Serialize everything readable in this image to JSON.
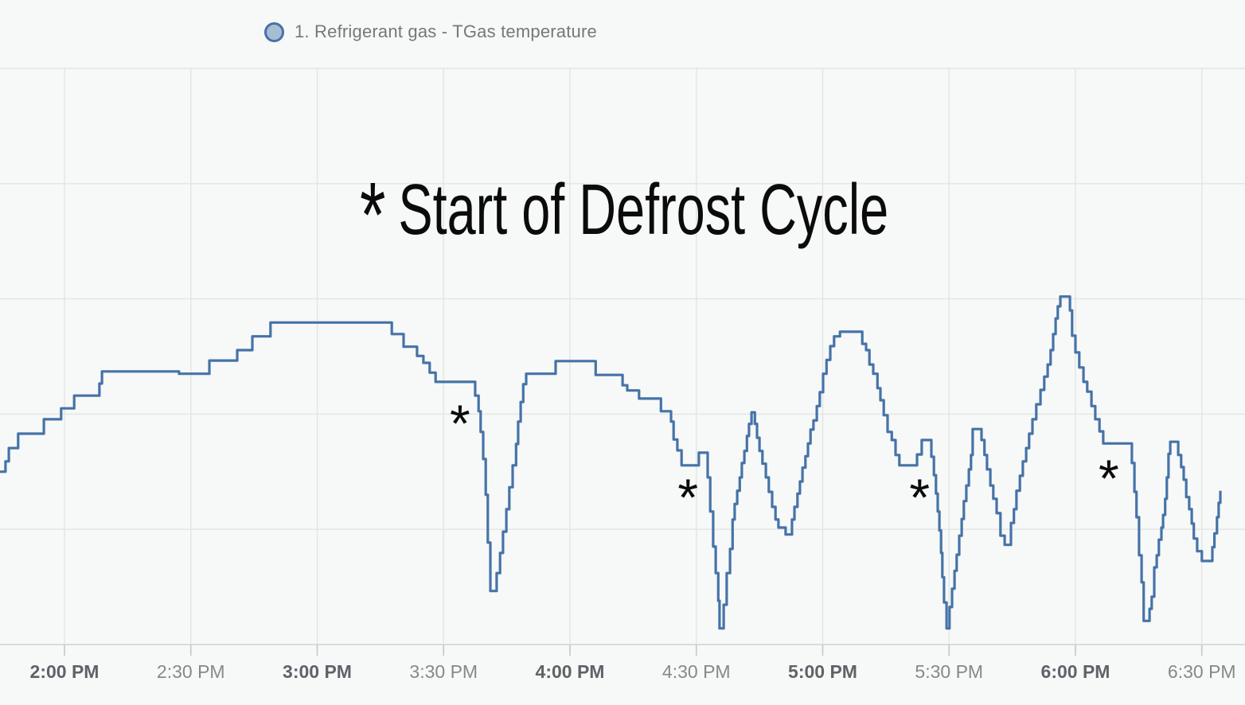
{
  "page": {
    "background": "#f7f8f8"
  },
  "legend": {
    "label": "1. Refrigerant gas - TGas temperature",
    "marker_shape": "circle",
    "marker_fill": "#a9bdd2",
    "marker_stroke": "#4573a7",
    "text_color": "#76777a"
  },
  "annotation": {
    "symbol": "*",
    "text": "Start of Defrost Cycle",
    "full_text": "* Start of Defrost Cycle",
    "color": "#0b0b0b"
  },
  "chart_data": {
    "type": "line",
    "step": true,
    "title": "",
    "xlabel": "",
    "ylabel": "",
    "legend_position": "top-left",
    "grid": true,
    "colors": {
      "series_line": "#4573a7",
      "gridline": "#e3e4e4",
      "axis_baseline": "#d0d1d1",
      "tick_mark": "#c6c7c8",
      "tick_label_bold": "#5f6368",
      "tick_label_regular": "#85898c",
      "marker": "#0b0b0b"
    },
    "x_axis": {
      "unit": "minutes_after_2:00_PM",
      "range": [
        -15.3,
        276.2
      ],
      "ticks": [
        {
          "t": 0,
          "label": "2:00 PM",
          "bold": true
        },
        {
          "t": 30,
          "label": "2:30 PM",
          "bold": false
        },
        {
          "t": 60,
          "label": "3:00 PM",
          "bold": true
        },
        {
          "t": 90,
          "label": "3:30 PM",
          "bold": false
        },
        {
          "t": 120,
          "label": "4:00 PM",
          "bold": true
        },
        {
          "t": 150,
          "label": "4:30 PM",
          "bold": false
        },
        {
          "t": 180,
          "label": "5:00 PM",
          "bold": true
        },
        {
          "t": 210,
          "label": "5:30 PM",
          "bold": false
        },
        {
          "t": 240,
          "label": "6:00 PM",
          "bold": true
        },
        {
          "t": 270,
          "label": "6:30 PM",
          "bold": false
        }
      ]
    },
    "y_axis": {
      "unit": "percent_of_plot_height",
      "range": [
        0,
        100
      ],
      "labels_visible": false,
      "gridline_values": [
        0,
        20,
        40,
        60,
        80,
        100
      ]
    },
    "series": [
      {
        "name": "1. Refrigerant gas - TGas temperature",
        "color": "#4573a7",
        "interpolation": "step-after",
        "points": [
          [
            -15.3,
            30.0
          ],
          [
            -14.0,
            31.8
          ],
          [
            -13.2,
            34.1
          ],
          [
            -11.0,
            36.6
          ],
          [
            -4.9,
            39.1
          ],
          [
            -0.8,
            41.0
          ],
          [
            2.3,
            43.2
          ],
          [
            8.3,
            45.3
          ],
          [
            8.9,
            47.4
          ],
          [
            27.2,
            47.0
          ],
          [
            34.4,
            49.3
          ],
          [
            41.0,
            51.1
          ],
          [
            44.6,
            53.5
          ],
          [
            48.9,
            55.9
          ],
          [
            77.7,
            53.9
          ],
          [
            80.5,
            51.7
          ],
          [
            83.7,
            50.1
          ],
          [
            85.2,
            48.9
          ],
          [
            86.7,
            47.2
          ],
          [
            88.1,
            45.6
          ],
          [
            97.5,
            43.2
          ],
          [
            98.3,
            40.5
          ],
          [
            98.8,
            36.9
          ],
          [
            99.4,
            32.2
          ],
          [
            100.0,
            26.0
          ],
          [
            100.5,
            17.7
          ],
          [
            101.1,
            9.3
          ],
          [
            102.6,
            12.4
          ],
          [
            103.4,
            15.9
          ],
          [
            104.1,
            19.6
          ],
          [
            104.9,
            23.5
          ],
          [
            105.6,
            27.3
          ],
          [
            106.4,
            31.1
          ],
          [
            107.2,
            34.8
          ],
          [
            107.7,
            38.7
          ],
          [
            108.3,
            42.1
          ],
          [
            108.9,
            45.2
          ],
          [
            109.6,
            47.0
          ],
          [
            116.6,
            49.2
          ],
          [
            126.1,
            46.8
          ],
          [
            132.5,
            45.0
          ],
          [
            133.6,
            44.1
          ],
          [
            136.4,
            42.7
          ],
          [
            141.6,
            40.5
          ],
          [
            144.0,
            38.7
          ],
          [
            144.6,
            35.6
          ],
          [
            145.5,
            33.7
          ],
          [
            146.5,
            31.1
          ],
          [
            150.6,
            33.3
          ],
          [
            152.7,
            29.0
          ],
          [
            153.3,
            23.1
          ],
          [
            154.0,
            17.0
          ],
          [
            154.6,
            12.4
          ],
          [
            155.2,
            7.6
          ],
          [
            155.5,
            2.8
          ],
          [
            156.5,
            6.9
          ],
          [
            157.2,
            12.4
          ],
          [
            158.0,
            16.6
          ],
          [
            158.6,
            21.7
          ],
          [
            159.1,
            24.4
          ],
          [
            159.7,
            26.7
          ],
          [
            160.3,
            29.0
          ],
          [
            160.8,
            31.5
          ],
          [
            161.4,
            33.6
          ],
          [
            162.0,
            36.2
          ],
          [
            162.5,
            38.3
          ],
          [
            163.1,
            40.3
          ],
          [
            163.9,
            38.3
          ],
          [
            164.4,
            35.9
          ],
          [
            165.0,
            33.6
          ],
          [
            165.7,
            31.4
          ],
          [
            166.5,
            29.0
          ],
          [
            167.2,
            26.5
          ],
          [
            168.0,
            23.9
          ],
          [
            168.8,
            21.7
          ],
          [
            169.5,
            20.3
          ],
          [
            171.2,
            19.1
          ],
          [
            172.7,
            21.7
          ],
          [
            173.3,
            23.9
          ],
          [
            174.0,
            26.2
          ],
          [
            174.6,
            28.3
          ],
          [
            175.2,
            30.7
          ],
          [
            175.9,
            32.7
          ],
          [
            176.5,
            34.9
          ],
          [
            177.1,
            37.3
          ],
          [
            177.8,
            38.9
          ],
          [
            178.6,
            41.4
          ],
          [
            179.3,
            43.8
          ],
          [
            180.1,
            47.0
          ],
          [
            180.9,
            49.4
          ],
          [
            181.8,
            51.8
          ],
          [
            182.7,
            53.5
          ],
          [
            184.1,
            54.3
          ],
          [
            189.4,
            52.2
          ],
          [
            190.3,
            51.1
          ],
          [
            191.1,
            48.6
          ],
          [
            192.0,
            47.0
          ],
          [
            193.0,
            44.5
          ],
          [
            193.7,
            42.4
          ],
          [
            194.5,
            39.8
          ],
          [
            195.4,
            36.9
          ],
          [
            196.4,
            35.5
          ],
          [
            197.3,
            32.9
          ],
          [
            198.2,
            31.1
          ],
          [
            202.4,
            33.0
          ],
          [
            203.5,
            35.5
          ],
          [
            205.8,
            32.6
          ],
          [
            206.4,
            29.4
          ],
          [
            206.9,
            26.2
          ],
          [
            207.3,
            23.1
          ],
          [
            207.7,
            19.8
          ],
          [
            208.1,
            15.9
          ],
          [
            208.4,
            11.7
          ],
          [
            208.8,
            7.3
          ],
          [
            209.4,
            2.8
          ],
          [
            210.1,
            6.5
          ],
          [
            210.7,
            9.7
          ],
          [
            211.3,
            12.8
          ],
          [
            211.8,
            15.6
          ],
          [
            212.4,
            18.9
          ],
          [
            213.0,
            21.8
          ],
          [
            213.5,
            24.9
          ],
          [
            214.1,
            27.6
          ],
          [
            214.7,
            30.4
          ],
          [
            215.2,
            32.9
          ],
          [
            215.6,
            37.4
          ],
          [
            217.7,
            35.5
          ],
          [
            218.4,
            32.9
          ],
          [
            219.0,
            30.4
          ],
          [
            219.8,
            27.6
          ],
          [
            220.5,
            25.3
          ],
          [
            221.3,
            22.8
          ],
          [
            222.2,
            18.9
          ],
          [
            223.2,
            17.3
          ],
          [
            224.7,
            21.1
          ],
          [
            225.4,
            23.5
          ],
          [
            226.0,
            26.7
          ],
          [
            226.8,
            29.3
          ],
          [
            227.5,
            31.8
          ],
          [
            228.3,
            34.1
          ],
          [
            229.0,
            36.6
          ],
          [
            229.8,
            39.1
          ],
          [
            230.7,
            41.7
          ],
          [
            231.7,
            44.2
          ],
          [
            232.6,
            46.5
          ],
          [
            233.4,
            48.6
          ],
          [
            234.1,
            51.1
          ],
          [
            234.7,
            53.9
          ],
          [
            235.3,
            56.6
          ],
          [
            235.8,
            58.7
          ],
          [
            236.4,
            60.4
          ],
          [
            238.7,
            58.0
          ],
          [
            239.2,
            53.6
          ],
          [
            240.0,
            50.7
          ],
          [
            240.9,
            48.1
          ],
          [
            241.9,
            45.6
          ],
          [
            242.8,
            43.9
          ],
          [
            243.8,
            41.4
          ],
          [
            244.7,
            39.1
          ],
          [
            245.7,
            37.0
          ],
          [
            246.6,
            34.9
          ],
          [
            253.4,
            31.5
          ],
          [
            254.0,
            26.5
          ],
          [
            254.5,
            22.1
          ],
          [
            255.1,
            15.5
          ],
          [
            255.7,
            10.8
          ],
          [
            256.2,
            4.1
          ],
          [
            257.6,
            6.2
          ],
          [
            258.1,
            8.3
          ],
          [
            258.7,
            13.4
          ],
          [
            259.3,
            15.5
          ],
          [
            259.8,
            18.2
          ],
          [
            260.4,
            20.3
          ],
          [
            260.8,
            22.5
          ],
          [
            261.3,
            25.3
          ],
          [
            261.7,
            29.0
          ],
          [
            262.1,
            33.1
          ],
          [
            262.5,
            35.2
          ],
          [
            264.4,
            32.9
          ],
          [
            265.1,
            30.8
          ],
          [
            265.7,
            28.6
          ],
          [
            266.3,
            25.6
          ],
          [
            267.0,
            23.5
          ],
          [
            267.6,
            21.0
          ],
          [
            268.1,
            18.4
          ],
          [
            268.9,
            16.2
          ],
          [
            270.0,
            14.5
          ],
          [
            272.5,
            16.9
          ],
          [
            273.0,
            19.3
          ],
          [
            273.6,
            22.1
          ],
          [
            274.0,
            24.6
          ],
          [
            274.4,
            26.7
          ]
        ]
      }
    ],
    "defrost_markers": [
      {
        "symbol": "*",
        "t": 93.9,
        "v": 39.9,
        "approx_time": "3:34 PM"
      },
      {
        "symbol": "*",
        "t": 148.0,
        "v": 27.1,
        "approx_time": "4:28 PM"
      },
      {
        "symbol": "*",
        "t": 203.0,
        "v": 27.1,
        "approx_time": "5:23 PM"
      },
      {
        "symbol": "*",
        "t": 247.9,
        "v": 30.4,
        "approx_time": "6:08 PM"
      }
    ]
  }
}
